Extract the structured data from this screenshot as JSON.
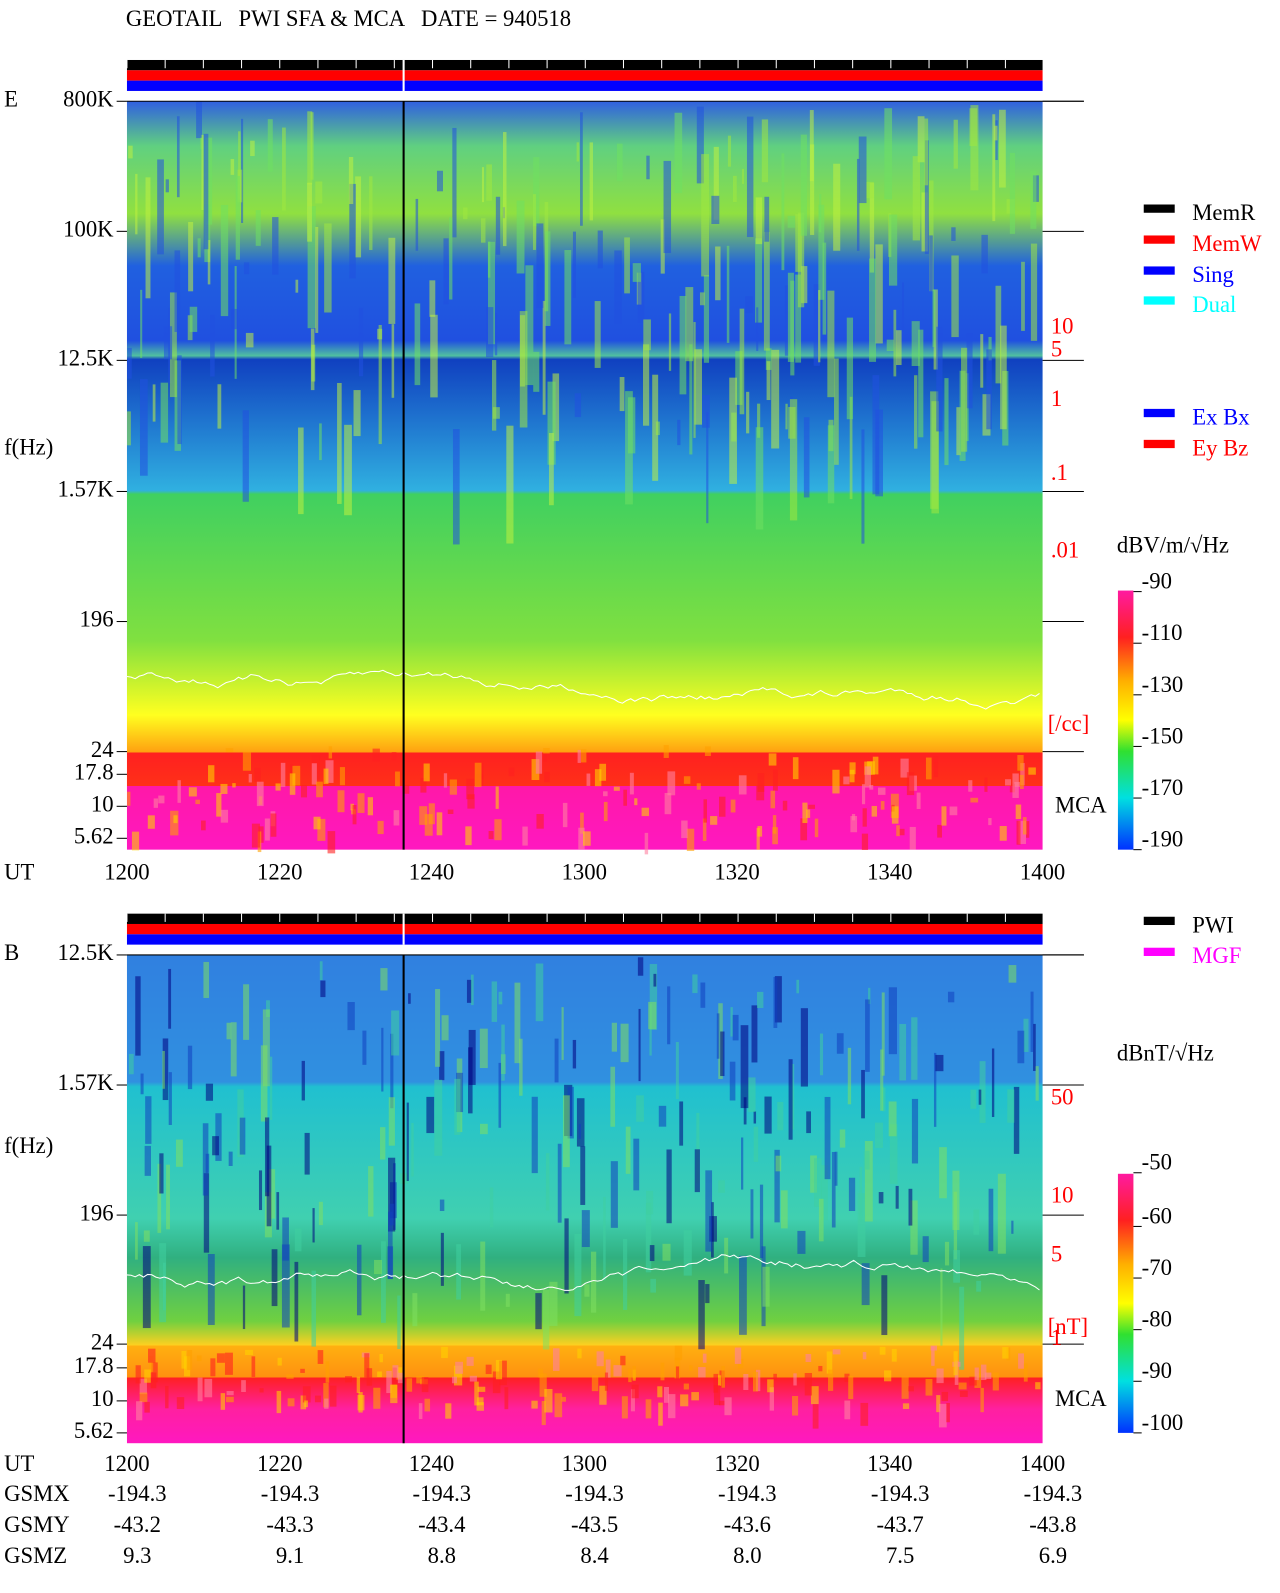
{
  "title": "GEOTAIL   PWI SFA & MCA   DATE = 940518",
  "panels": [
    {
      "label": "E",
      "axis_label": "f(Hz)",
      "y_ticks": [
        "800K",
        "100K",
        "12.5K",
        "1.57K",
        "196",
        "24",
        "17.8",
        "10",
        "5.62"
      ],
      "x_axis_label": "UT",
      "x_ticks": [
        "1200",
        "1220",
        "1240",
        "1300",
        "1320",
        "1340",
        "1400"
      ],
      "right_labels": [
        "10",
        "5",
        "1",
        ".1",
        ".01",
        "[/cc]"
      ],
      "mca_label": "MCA",
      "legend": [
        {
          "label": "MemR",
          "color": "#000000"
        },
        {
          "label": "MemW",
          "color": "#ff0000"
        },
        {
          "label": "Sing",
          "color": "#0000ff"
        },
        {
          "label": "Dual",
          "color": "#00ffff"
        }
      ],
      "legend2": [
        {
          "label": "Ex Bx",
          "color": "#0000ff"
        },
        {
          "label": "Ey Bz",
          "color": "#ff0000"
        }
      ],
      "colorbar": {
        "unit": "dBV/m/√Hz",
        "ticks": [
          "-90",
          "-110",
          "-130",
          "-150",
          "-170",
          "-190"
        ]
      }
    },
    {
      "label": "B",
      "axis_label": "f(Hz)",
      "y_ticks": [
        "12.5K",
        "1.57K",
        "196",
        "24",
        "17.8",
        "10",
        "5.62"
      ],
      "x_axis_label": "UT",
      "x_ticks": [
        "1200",
        "1220",
        "1240",
        "1300",
        "1320",
        "1340",
        "1400"
      ],
      "right_labels": [
        "50",
        "10",
        "5",
        "1",
        "[nT]"
      ],
      "mca_label": "MCA",
      "legend": [
        {
          "label": "PWI",
          "color": "#000000"
        },
        {
          "label": "MGF",
          "color": "#ff00ff"
        }
      ],
      "legend2": [],
      "colorbar": {
        "unit": "dBnT/√Hz",
        "ticks": [
          "-50",
          "-60",
          "-70",
          "-80",
          "-90",
          "-100"
        ]
      }
    }
  ],
  "orbit": {
    "rows": [
      {
        "label": "GSMX",
        "values": [
          "-194.3",
          "-194.3",
          "-194.3",
          "-194.3",
          "-194.3",
          "-194.3",
          "-194.3"
        ]
      },
      {
        "label": "GSMY",
        "values": [
          "-43.2",
          "-43.3",
          "-43.4",
          "-43.5",
          "-43.6",
          "-43.7",
          "-43.8"
        ]
      },
      {
        "label": "GSMZ",
        "values": [
          "9.3",
          "9.1",
          "8.8",
          "8.4",
          "8.0",
          "7.5",
          "6.9"
        ]
      }
    ]
  }
}
